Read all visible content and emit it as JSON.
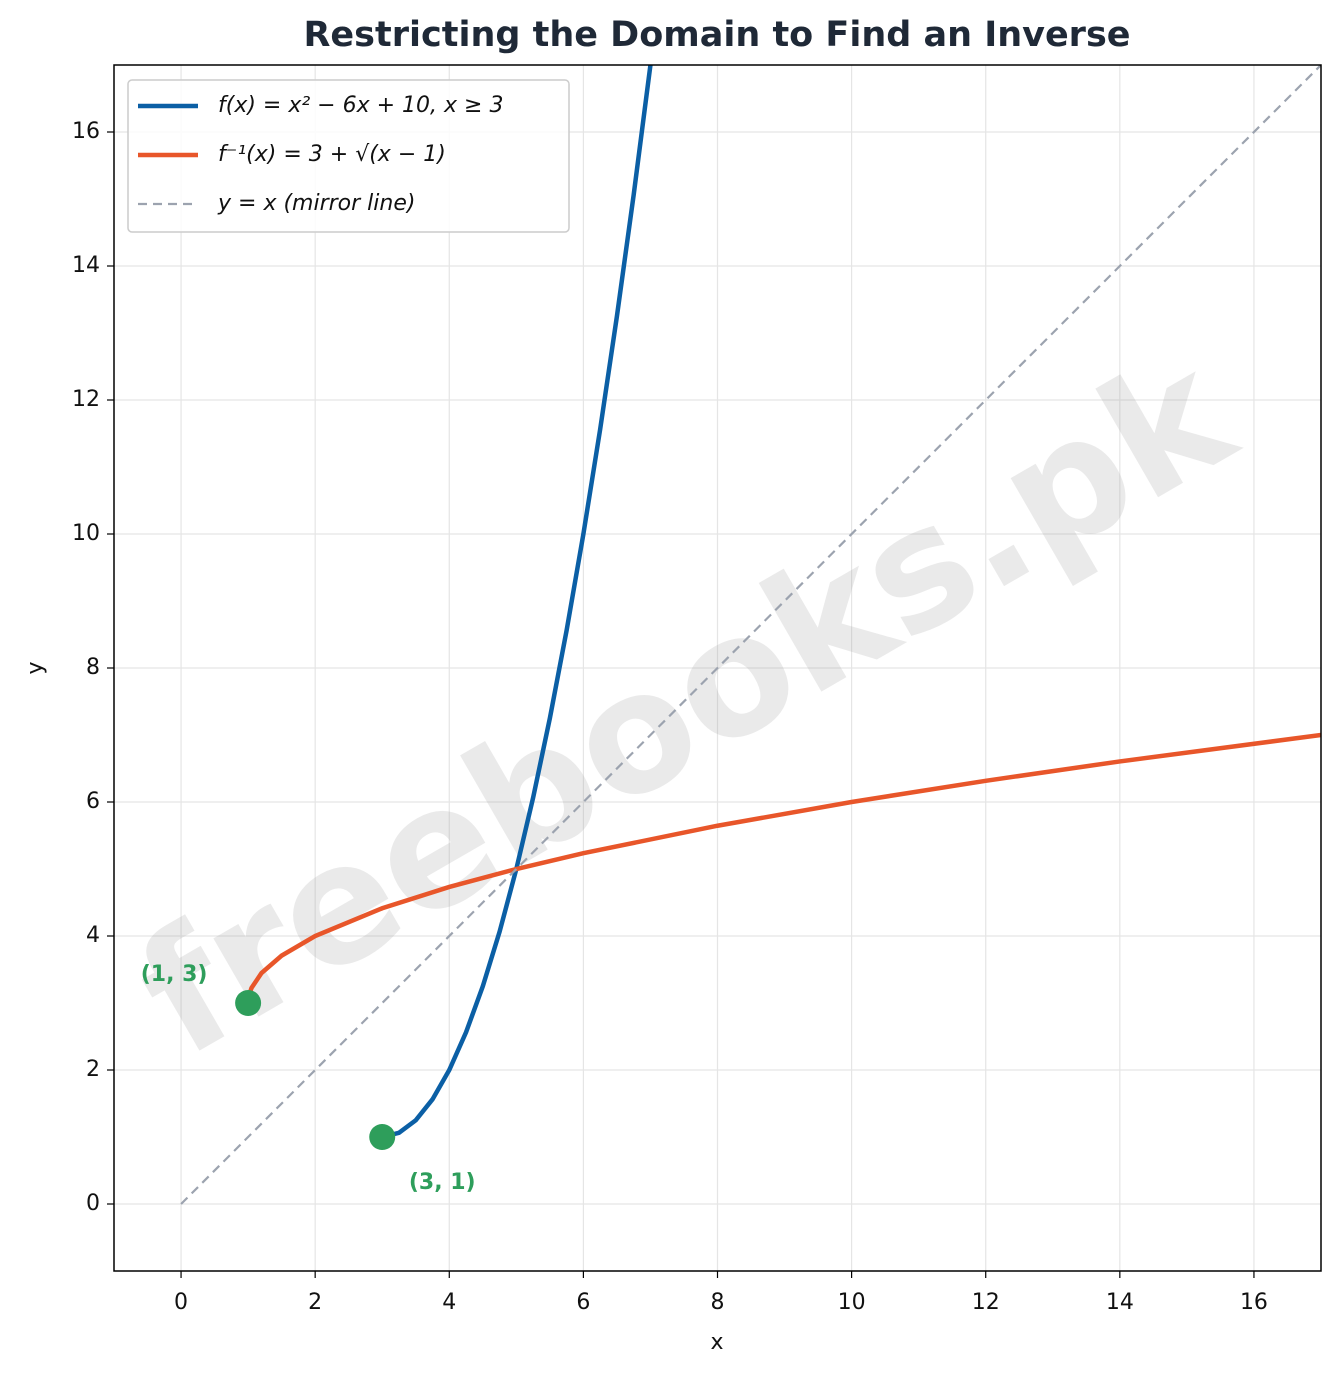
{
  "chart_data": {
    "type": "line",
    "title": "Restricting the Domain to Find an Inverse",
    "xlabel": "x",
    "ylabel": "y",
    "xlim": [
      -1,
      17
    ],
    "ylim": [
      -1,
      17
    ],
    "xticks": [
      0,
      2,
      4,
      6,
      8,
      10,
      12,
      14,
      16
    ],
    "yticks": [
      0,
      2,
      4,
      6,
      8,
      10,
      12,
      14,
      16
    ],
    "grid": true,
    "legend": "upper left",
    "watermark": "freebooks.pk",
    "series": [
      {
        "name": "f(x) = x² − 6x + 10,  x ≥ 3",
        "color": "#0b5fa5",
        "linestyle": "solid",
        "x": [
          3,
          3.25,
          3.5,
          3.75,
          4,
          4.25,
          4.5,
          4.75,
          5,
          5.25,
          5.5,
          5.75,
          6,
          6.25,
          6.5,
          6.75,
          7
        ],
        "values": [
          1,
          1.0625,
          1.25,
          1.5625,
          2,
          2.5625,
          3.25,
          4.0625,
          5,
          6.0625,
          7.25,
          8.5625,
          10,
          11.5625,
          13.25,
          15.0625,
          17
        ]
      },
      {
        "name": "f⁻¹(x) = 3 + √(x − 1)",
        "color": "#e8562a",
        "linestyle": "solid",
        "x": [
          1,
          1.01,
          1.05,
          1.2,
          1.5,
          2,
          3,
          4,
          5,
          6,
          8,
          10,
          12,
          14,
          17
        ],
        "values": [
          3,
          3.1,
          3.2236,
          3.4472,
          3.7071,
          4,
          4.4142,
          4.7321,
          5,
          5.2361,
          5.6458,
          6,
          6.3166,
          6.6056,
          7
        ]
      },
      {
        "name": "y = x (mirror line)",
        "color": "#9ca3af",
        "linestyle": "dashed",
        "x": [
          0,
          17
        ],
        "values": [
          0,
          17
        ]
      }
    ],
    "points": [
      {
        "x": 1,
        "y": 3,
        "label": "(1, 3)",
        "color": "#2e9e5b"
      },
      {
        "x": 3,
        "y": 1,
        "label": "(3, 1)",
        "color": "#2e9e5b"
      }
    ]
  }
}
